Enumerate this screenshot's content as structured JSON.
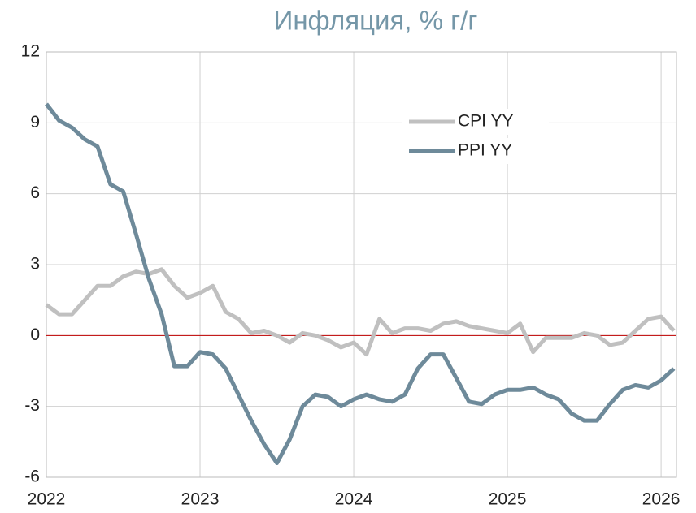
{
  "chart_data": {
    "type": "line",
    "title": "Инфляция, % г/г",
    "x": [
      2022.0,
      2022.083,
      2022.167,
      2022.25,
      2022.333,
      2022.417,
      2022.5,
      2022.583,
      2022.667,
      2022.75,
      2022.833,
      2022.917,
      2023.0,
      2023.083,
      2023.167,
      2023.25,
      2023.333,
      2023.417,
      2023.5,
      2023.583,
      2023.667,
      2023.75,
      2023.833,
      2023.917,
      2024.0,
      2024.083,
      2024.167,
      2024.25,
      2024.333,
      2024.417,
      2024.5,
      2024.583,
      2024.667,
      2024.75,
      2024.833,
      2024.917,
      2025.0,
      2025.083,
      2025.167,
      2025.25,
      2025.333,
      2025.417,
      2025.5,
      2025.583,
      2025.667,
      2025.75,
      2025.833,
      2025.917,
      2026.0,
      2026.083
    ],
    "series": [
      {
        "name": "CPI YY",
        "color": "#c0c0c0",
        "values": [
          1.3,
          0.9,
          0.9,
          1.5,
          2.1,
          2.1,
          2.5,
          2.7,
          2.6,
          2.8,
          2.1,
          1.6,
          1.8,
          2.1,
          1.0,
          0.7,
          0.1,
          0.2,
          0.0,
          -0.3,
          0.1,
          0.0,
          -0.2,
          -0.5,
          -0.3,
          -0.8,
          0.7,
          0.1,
          0.3,
          0.3,
          0.2,
          0.5,
          0.6,
          0.4,
          0.3,
          0.2,
          0.1,
          0.5,
          -0.7,
          -0.1,
          -0.1,
          -0.1,
          0.1,
          0.0,
          -0.4,
          -0.3,
          0.2,
          0.7,
          0.8,
          0.2
        ]
      },
      {
        "name": "PPI YY",
        "color": "#6e8a9a",
        "values": [
          9.8,
          9.1,
          8.8,
          8.3,
          8.0,
          6.4,
          6.1,
          4.3,
          2.4,
          0.9,
          -1.3,
          -1.3,
          -0.7,
          -0.8,
          -1.4,
          -2.5,
          -3.6,
          -4.6,
          -5.4,
          -4.4,
          -3.0,
          -2.5,
          -2.6,
          -3.0,
          -2.7,
          -2.5,
          -2.7,
          -2.8,
          -2.5,
          -1.4,
          -0.8,
          -0.8,
          -1.8,
          -2.8,
          -2.9,
          -2.5,
          -2.3,
          -2.3,
          -2.2,
          -2.5,
          -2.7,
          -3.3,
          -3.6,
          -3.6,
          -2.9,
          -2.3,
          -2.1,
          -2.2,
          -1.9,
          -1.4
        ]
      }
    ],
    "xlim": [
      2022,
      2026.1
    ],
    "xticks": [
      2022,
      2023,
      2024,
      2025,
      2026
    ],
    "ylim": [
      -6,
      12
    ],
    "yticks": [
      -6,
      -3,
      0,
      3,
      6,
      9,
      12
    ],
    "grid": true,
    "legend": "upper right",
    "reference_line": {
      "value": 0,
      "color": "#c00000"
    }
  }
}
